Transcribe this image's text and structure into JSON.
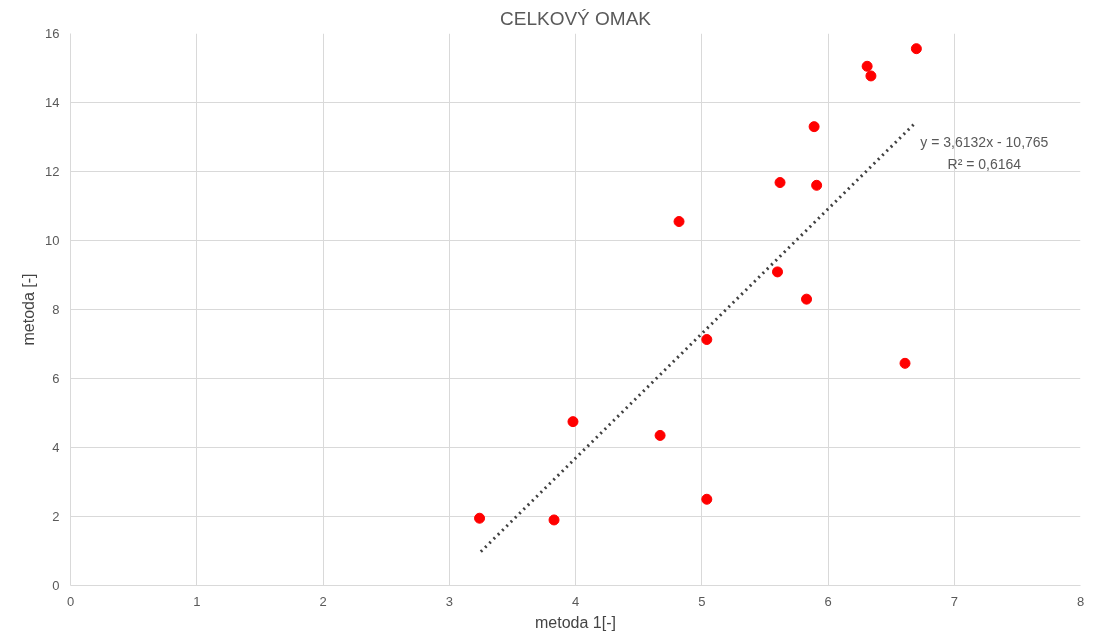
{
  "chart_data": {
    "type": "scatter",
    "title": "CELKOVÝ OMAK",
    "xlabel": "metoda 1[-]",
    "ylabel": "metoda [-]",
    "xlim": [
      0,
      8
    ],
    "xticks": [
      0,
      1,
      2,
      3,
      4,
      5,
      6,
      7,
      8
    ],
    "ylim": [
      0,
      16
    ],
    "yticks": [
      0,
      2,
      4,
      6,
      8,
      10,
      12,
      14,
      16
    ],
    "grid": true,
    "series": [
      {
        "marker": "circle",
        "color": "#ff0000",
        "x": [
          3.24,
          3.83,
          3.98,
          4.67,
          4.82,
          5.04,
          5.04,
          5.6,
          5.62,
          5.89,
          5.91,
          5.83,
          6.31,
          6.34,
          6.61,
          6.7
        ],
        "values": [
          1.95,
          1.9,
          4.75,
          4.35,
          10.55,
          7.13,
          2.5,
          9.09,
          11.68,
          13.3,
          11.6,
          8.3,
          15.05,
          14.77,
          6.44,
          15.56
        ]
      },
      {
        "type": "line",
        "color": "#404040",
        "line_style": "dotted",
        "x": [
          3.25,
          6.7
        ],
        "values": [
          0.98,
          13.44
        ]
      }
    ],
    "annotations": [
      "y = 3,6132x - 10,765",
      "R² = 0,6164"
    ]
  }
}
